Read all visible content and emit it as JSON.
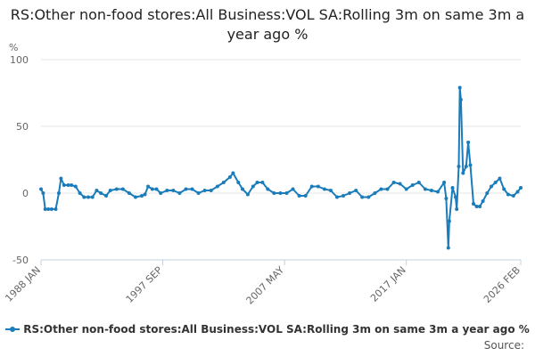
{
  "colors": {
    "series": "#1a7cba",
    "grid": "#e6e6e6",
    "axis": "#c0d0e0"
  },
  "chart_data": {
    "type": "line",
    "title": "RS:Other non-food stores:All Business:VOL SA:Rolling 3m on same 3m a year ago %",
    "ylabel": "%",
    "xlabel": "",
    "ylim": [
      -50,
      100
    ],
    "yticks": [
      100,
      50,
      0,
      -50
    ],
    "xlim": [
      "1988-01",
      "2026-02"
    ],
    "xticks": [
      "1988 JAN",
      "1997 SEP",
      "2007 MAY",
      "2017 JAN",
      "2026 FEB"
    ],
    "grid": true,
    "legend": "bottom",
    "series": [
      {
        "name": "RS:Other non-food stores:All Business:VOL SA:Rolling 3m on same 3m a year ago %",
        "points": [
          [
            "1988-01",
            3
          ],
          [
            "1988-03",
            0
          ],
          [
            "1988-05",
            -12
          ],
          [
            "1988-08",
            -12
          ],
          [
            "1988-11",
            -12
          ],
          [
            "1989-03",
            -12
          ],
          [
            "1989-06",
            0
          ],
          [
            "1989-08",
            11
          ],
          [
            "1989-11",
            6
          ],
          [
            "1990-03",
            6
          ],
          [
            "1990-06",
            6
          ],
          [
            "1990-10",
            5
          ],
          [
            "1991-02",
            0
          ],
          [
            "1991-06",
            -3
          ],
          [
            "1991-10",
            -3
          ],
          [
            "1992-02",
            -3
          ],
          [
            "1992-06",
            2
          ],
          [
            "1992-10",
            0
          ],
          [
            "1993-03",
            -2
          ],
          [
            "1993-07",
            2
          ],
          [
            "1994-01",
            3
          ],
          [
            "1994-07",
            3
          ],
          [
            "1995-01",
            0
          ],
          [
            "1995-07",
            -3
          ],
          [
            "1996-01",
            -2
          ],
          [
            "1996-04",
            -1
          ],
          [
            "1996-07",
            5
          ],
          [
            "1996-11",
            3
          ],
          [
            "1997-03",
            3
          ],
          [
            "1997-07",
            0
          ],
          [
            "1998-01",
            2
          ],
          [
            "1998-07",
            2
          ],
          [
            "1999-01",
            0
          ],
          [
            "1999-07",
            3
          ],
          [
            "2000-01",
            3
          ],
          [
            "2000-07",
            0
          ],
          [
            "2001-01",
            2
          ],
          [
            "2001-07",
            2
          ],
          [
            "2002-01",
            5
          ],
          [
            "2002-07",
            8
          ],
          [
            "2003-01",
            12
          ],
          [
            "2003-04",
            15
          ],
          [
            "2003-09",
            8
          ],
          [
            "2004-01",
            3
          ],
          [
            "2004-06",
            -1
          ],
          [
            "2004-11",
            5
          ],
          [
            "2005-03",
            8
          ],
          [
            "2005-08",
            8
          ],
          [
            "2006-01",
            3
          ],
          [
            "2006-07",
            0
          ],
          [
            "2007-01",
            0
          ],
          [
            "2007-07",
            0
          ],
          [
            "2008-01",
            3
          ],
          [
            "2008-07",
            -2
          ],
          [
            "2009-01",
            -2
          ],
          [
            "2009-07",
            5
          ],
          [
            "2010-01",
            5
          ],
          [
            "2010-07",
            3
          ],
          [
            "2011-01",
            2
          ],
          [
            "2011-07",
            -3
          ],
          [
            "2012-01",
            -2
          ],
          [
            "2012-07",
            0
          ],
          [
            "2013-01",
            2
          ],
          [
            "2013-07",
            -3
          ],
          [
            "2014-01",
            -3
          ],
          [
            "2014-07",
            0
          ],
          [
            "2015-01",
            3
          ],
          [
            "2015-07",
            3
          ],
          [
            "2016-01",
            8
          ],
          [
            "2016-07",
            7
          ],
          [
            "2017-01",
            3
          ],
          [
            "2017-07",
            6
          ],
          [
            "2018-01",
            8
          ],
          [
            "2018-07",
            3
          ],
          [
            "2019-01",
            2
          ],
          [
            "2019-07",
            1
          ],
          [
            "2020-01",
            8
          ],
          [
            "2020-03",
            -4
          ],
          [
            "2020-05",
            -41
          ],
          [
            "2020-06",
            -21
          ],
          [
            "2020-09",
            4
          ],
          [
            "2020-12",
            -3
          ],
          [
            "2021-01",
            -12
          ],
          [
            "2021-03",
            20
          ],
          [
            "2021-04",
            79
          ],
          [
            "2021-05",
            70
          ],
          [
            "2021-07",
            15
          ],
          [
            "2021-10",
            20
          ],
          [
            "2021-12",
            38
          ],
          [
            "2022-02",
            21
          ],
          [
            "2022-05",
            -8
          ],
          [
            "2022-08",
            -10
          ],
          [
            "2022-11",
            -10
          ],
          [
            "2023-02",
            -6
          ],
          [
            "2023-06",
            0
          ],
          [
            "2023-10",
            5
          ],
          [
            "2024-02",
            8
          ],
          [
            "2024-06",
            11
          ],
          [
            "2024-10",
            3
          ],
          [
            "2025-02",
            -1
          ],
          [
            "2025-07",
            -2
          ],
          [
            "2025-11",
            1
          ],
          [
            "2026-02",
            4
          ]
        ]
      }
    ]
  },
  "source_label": "Source:"
}
